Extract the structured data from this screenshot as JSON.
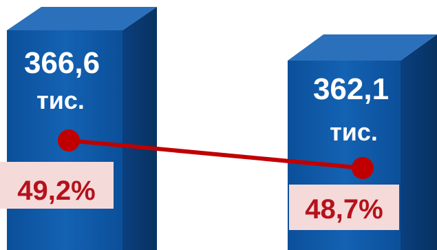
{
  "chart_data": {
    "type": "bar",
    "categories": [
      "",
      ""
    ],
    "series": [
      {
        "values": [
          366.6,
          362.1
        ],
        "labels": [
          "366,6",
          "362,1"
        ],
        "unit": "тис."
      },
      {
        "type": "line",
        "values": [
          49.2,
          48.7
        ],
        "labels": [
          "49,2%",
          "48,7%"
        ]
      }
    ],
    "colors": {
      "bar_front": "#0f5aa8",
      "bar_side": "#0a3d7a",
      "bar_top": "#2f78c4",
      "line": "#c00000",
      "pct_box": "#f5dada",
      "pct_text": "#b5121b"
    }
  }
}
